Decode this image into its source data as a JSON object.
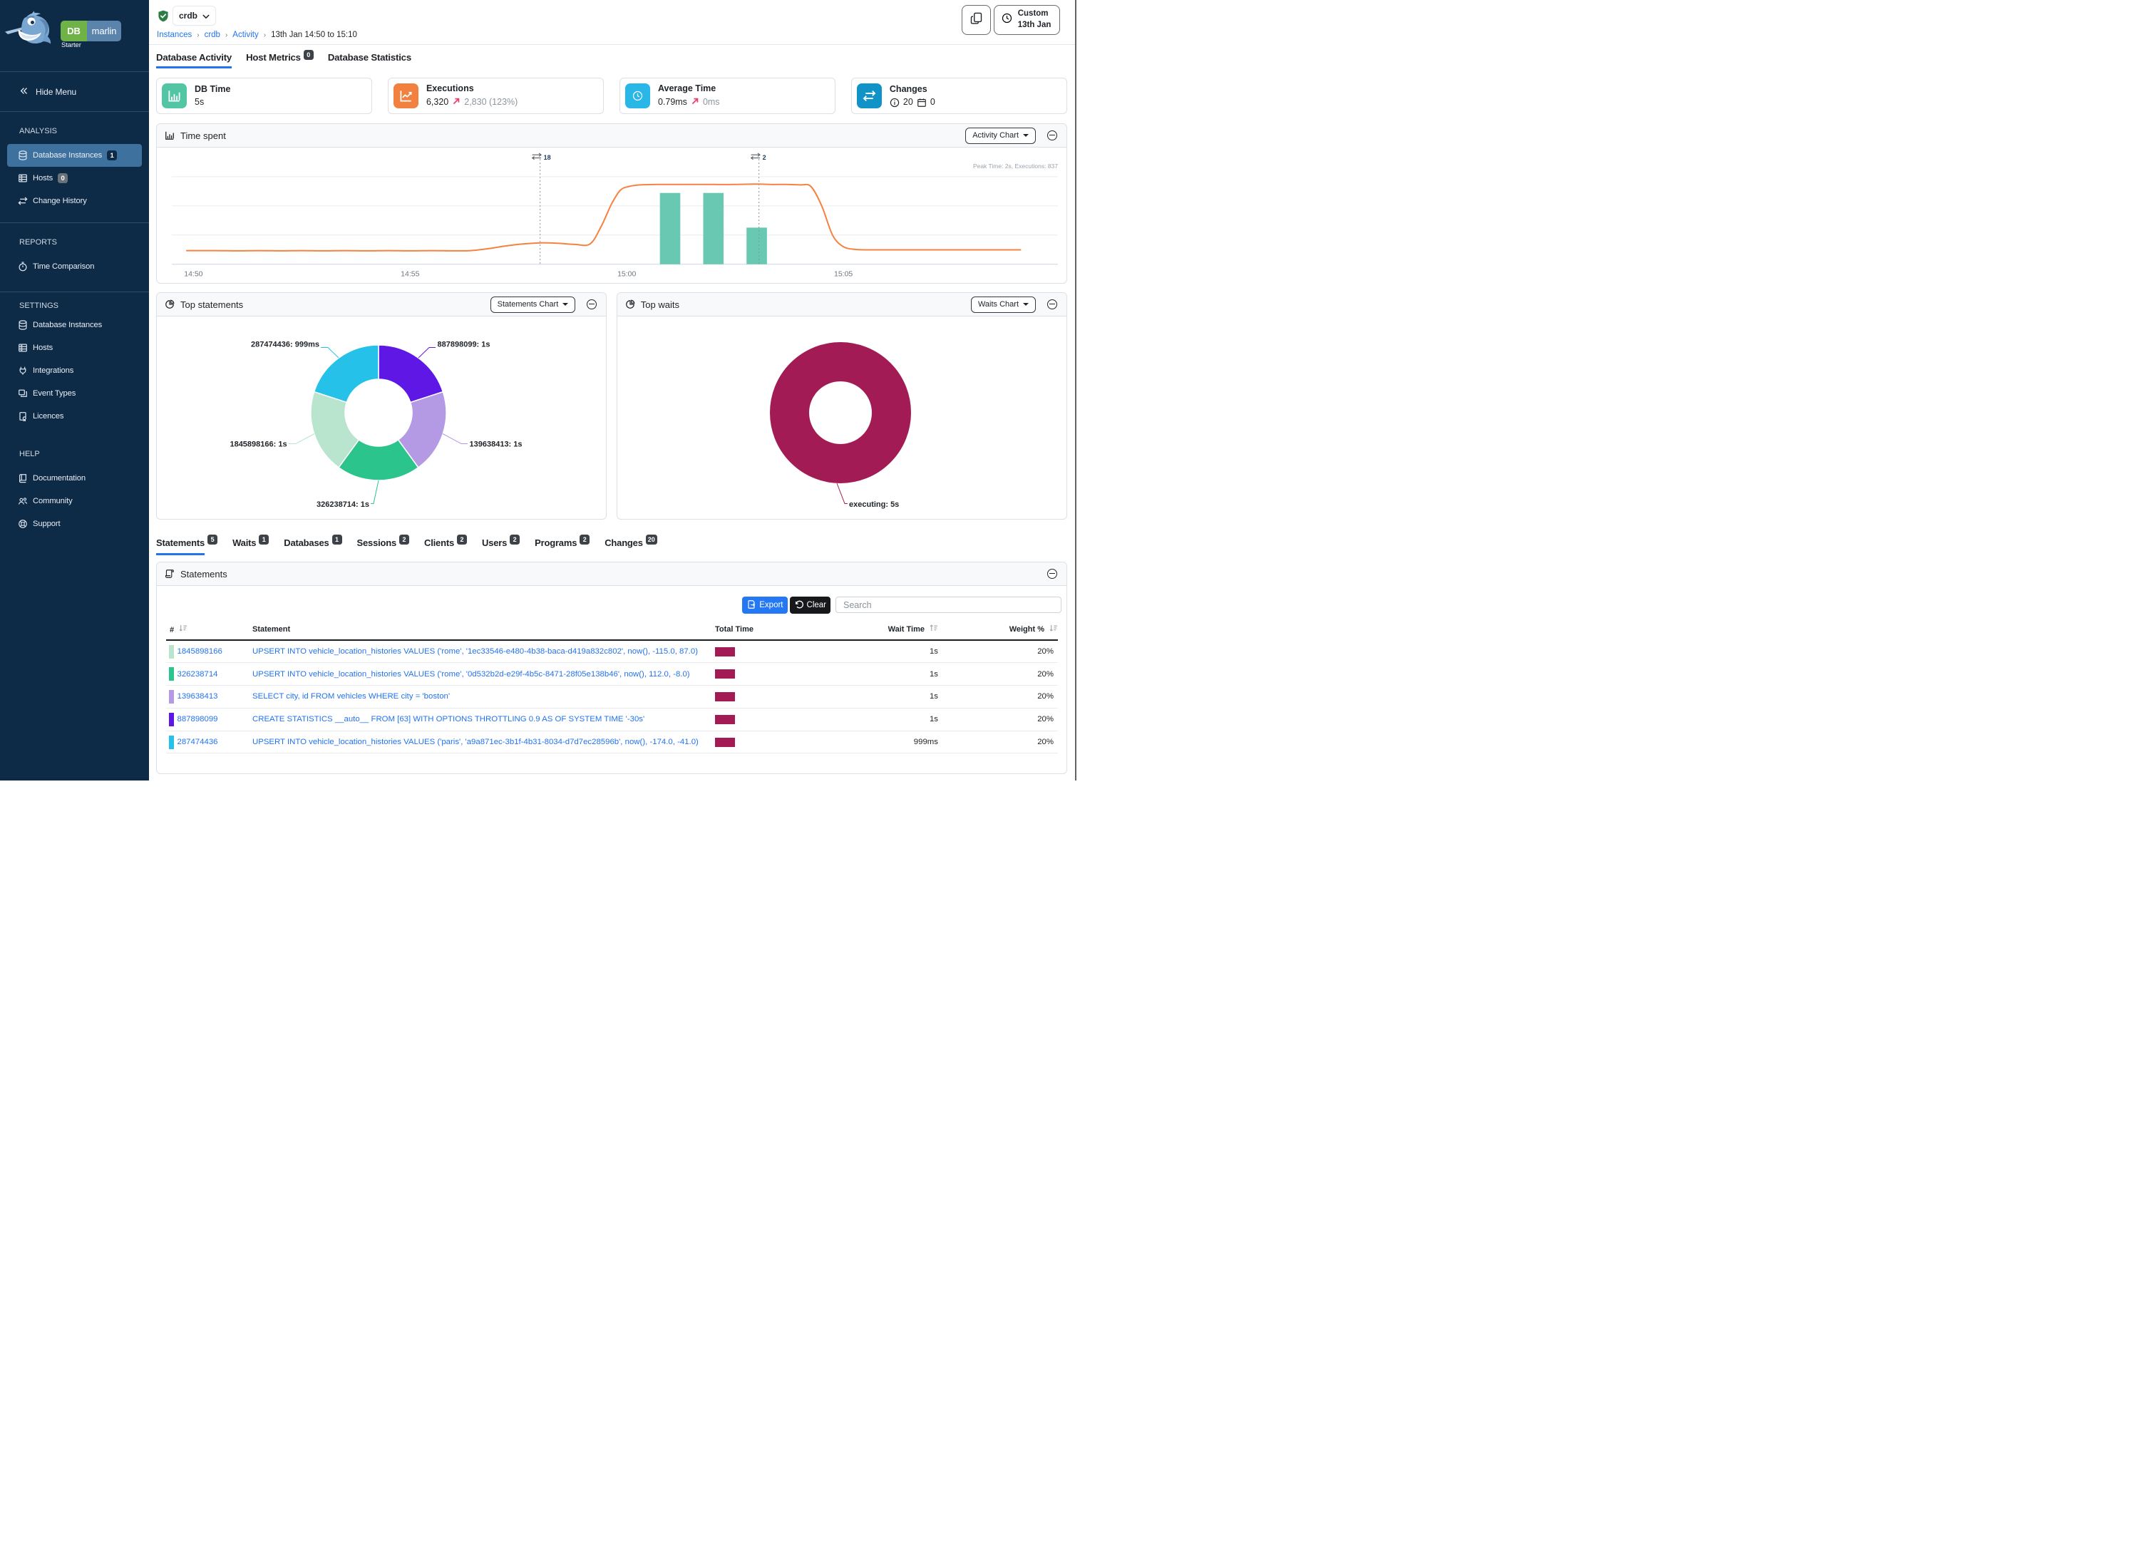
{
  "brand": {
    "db": "DB",
    "marlin": "marlin",
    "tier": "Starter",
    "green": "#6fb247",
    "blue": "#5b84ad"
  },
  "colors": {
    "sidebar_navy": "#0d2a46",
    "sidebar_active_item": "#3f719f",
    "accent_blue": "#2373f0",
    "link_blue": "#2373f0",
    "line_orange": "#f58240",
    "bar_teal": "#68c8b1",
    "wait_maroon": "#a31b55",
    "export_blue": "#2478f4",
    "clear_black": "#16181b",
    "badge_dark": "#3c4248",
    "trend_arrow_red": "#e8436e"
  },
  "sidebar": {
    "hide_menu": "Hide Menu",
    "sections": [
      {
        "title": "ANALYSIS",
        "items": [
          {
            "label": "Database Instances",
            "icon": "database-icon",
            "badge": "1",
            "badge_style": "navy",
            "active": true
          },
          {
            "label": "Hosts",
            "icon": "server-icon",
            "badge": "0",
            "badge_style": "gray",
            "active": false
          },
          {
            "label": "Change History",
            "icon": "swap-icon",
            "active": false
          }
        ]
      },
      {
        "title": "REPORTS",
        "items": [
          {
            "label": "Time Comparison",
            "icon": "stopwatch-icon",
            "active": false
          }
        ]
      },
      {
        "title": "SETTINGS",
        "items": [
          {
            "label": "Database Instances",
            "icon": "database-icon",
            "active": false
          },
          {
            "label": "Hosts",
            "icon": "server-icon",
            "active": false
          },
          {
            "label": "Integrations",
            "icon": "plug-icon",
            "active": false
          },
          {
            "label": "Event Types",
            "icon": "windows-icon",
            "active": false
          },
          {
            "label": "Licences",
            "icon": "certificate-icon",
            "active": false
          }
        ]
      },
      {
        "title": "HELP",
        "items": [
          {
            "label": "Documentation",
            "icon": "book-icon",
            "active": false
          },
          {
            "label": "Community",
            "icon": "people-icon",
            "active": false
          },
          {
            "label": "Support",
            "icon": "support-icon",
            "active": false
          }
        ]
      }
    ]
  },
  "header": {
    "instance": "crdb",
    "status": "healthy",
    "breadcrumb": [
      "Instances",
      "crdb",
      "Activity",
      "13th Jan 14:50 to 15:10"
    ],
    "time_button": {
      "line1": "Custom",
      "line2": "13th Jan"
    }
  },
  "page_tabs": [
    {
      "label": "Database Activity",
      "active": true
    },
    {
      "label": "Host Metrics",
      "badge": "0",
      "active": false
    },
    {
      "label": "Database Statistics",
      "active": false
    }
  ],
  "cards": [
    {
      "title": "DB Time",
      "value": "5s",
      "icon": "bar-chart-icon",
      "color": "#52c6a4"
    },
    {
      "title": "Executions",
      "value": "6,320",
      "delta": "2,830 (123%)",
      "trend": "up",
      "icon": "line-chart-icon",
      "color": "#f2803f"
    },
    {
      "title": "Average Time",
      "value": "0.79ms",
      "delta": "0ms",
      "trend": "up",
      "icon": "clock-icon",
      "color": "#29b7e8"
    },
    {
      "title": "Changes",
      "info_value": "20",
      "calendar_value": "0",
      "icon": "swap-icon",
      "color": "#1193c7"
    }
  ],
  "time_spent_panel": {
    "title": "Time spent",
    "icon": "bar-chart-icon",
    "button_label": "Activity Chart",
    "peak_note": "Peak Time: 2s, Executions: 837"
  },
  "top_statements_panel": {
    "title": "Top statements",
    "icon": "pie-icon",
    "button_label": "Statements Chart"
  },
  "top_waits_panel": {
    "title": "Top waits",
    "icon": "pie-icon",
    "button_label": "Waits Chart"
  },
  "chart_data": [
    {
      "name": "time_spent",
      "type": "line",
      "title": "Time spent",
      "x_axis": {
        "ticks": [
          "14:50",
          "14:55",
          "15:00",
          "15:05"
        ],
        "tick_minutes": [
          0,
          5,
          10,
          15
        ],
        "range_minutes": [
          -0.5,
          19.95
        ]
      },
      "y_axis": {
        "unit": "seconds",
        "min": 0,
        "max": 3,
        "gridlines": true
      },
      "series": [
        {
          "name": "DB Time",
          "type": "line",
          "color": "#f58240",
          "points_min_sec": [
            [
              -0.17,
              0.35
            ],
            [
              0.5,
              0.35
            ],
            [
              1,
              0.345
            ],
            [
              1.5,
              0.35
            ],
            [
              2,
              0.345
            ],
            [
              2.5,
              0.35
            ],
            [
              3,
              0.345
            ],
            [
              3.5,
              0.35
            ],
            [
              4,
              0.345
            ],
            [
              4.5,
              0.35
            ],
            [
              5,
              0.345
            ],
            [
              5.5,
              0.35
            ],
            [
              6,
              0.345
            ],
            [
              6.4,
              0.35
            ],
            [
              6.8,
              0.4
            ],
            [
              7.2,
              0.47
            ],
            [
              7.6,
              0.52
            ],
            [
              8,
              0.55
            ],
            [
              8.4,
              0.54
            ],
            [
              8.8,
              0.51
            ],
            [
              9.15,
              0.52
            ],
            [
              9.4,
              0.95
            ],
            [
              9.65,
              1.55
            ],
            [
              9.85,
              1.9
            ],
            [
              10.05,
              2.0
            ],
            [
              10.3,
              2.04
            ],
            [
              10.7,
              2.05
            ],
            [
              11,
              2.05
            ],
            [
              11.5,
              2.05
            ],
            [
              12,
              2.05
            ],
            [
              12.5,
              2.05
            ],
            [
              13,
              2.06
            ],
            [
              13.3,
              2.05
            ],
            [
              13.7,
              2.05
            ],
            [
              14,
              2.04
            ],
            [
              14.25,
              2.0
            ],
            [
              14.5,
              1.5
            ],
            [
              14.75,
              0.75
            ],
            [
              15,
              0.45
            ],
            [
              15.3,
              0.38
            ],
            [
              15.7,
              0.37
            ],
            [
              16.5,
              0.37
            ],
            [
              17.5,
              0.37
            ],
            [
              18.5,
              0.37
            ],
            [
              19.1,
              0.37
            ]
          ]
        },
        {
          "name": "Executions",
          "type": "bar",
          "color": "#68c8b1",
          "peak": 837,
          "bars": [
            {
              "minute": 11,
              "executions": 837
            },
            {
              "minute": 12,
              "executions": 837
            },
            {
              "minute": 13,
              "executions": 430
            }
          ]
        }
      ],
      "change_markers": [
        {
          "minute": 8.0,
          "label": "18"
        },
        {
          "minute": 13.05,
          "label": "2"
        }
      ]
    },
    {
      "name": "top_statements",
      "type": "pie",
      "title": "Top statements",
      "slices": [
        {
          "id": "887898099",
          "time": "1s",
          "value": 1,
          "color": "#5f17e6"
        },
        {
          "id": "139638413",
          "time": "1s",
          "value": 1,
          "color": "#b49ae4"
        },
        {
          "id": "326238714",
          "time": "1s",
          "value": 1,
          "color": "#2bc48c"
        },
        {
          "id": "1845898166",
          "time": "1s",
          "value": 1,
          "color": "#b9e4cd"
        },
        {
          "id": "287474436",
          "time": "999ms",
          "value": 0.999,
          "color": "#26c1e8"
        }
      ]
    },
    {
      "name": "top_waits",
      "type": "pie",
      "title": "Top waits",
      "slices": [
        {
          "id": "executing",
          "time": "5s",
          "value": 5,
          "color": "#a31b55"
        }
      ]
    }
  ],
  "detail_tabs": [
    {
      "label": "Statements",
      "badge": "5",
      "active": true
    },
    {
      "label": "Waits",
      "badge": "1",
      "active": false
    },
    {
      "label": "Databases",
      "badge": "1",
      "active": false
    },
    {
      "label": "Sessions",
      "badge": "2",
      "active": false
    },
    {
      "label": "Clients",
      "badge": "2",
      "active": false
    },
    {
      "label": "Users",
      "badge": "2",
      "active": false
    },
    {
      "label": "Programs",
      "badge": "2",
      "active": false
    },
    {
      "label": "Changes",
      "badge": "20",
      "active": false
    }
  ],
  "statements_panel": {
    "title": "Statements",
    "icon": "scroll-icon",
    "toolbar": {
      "export_label": "Export",
      "clear_label": "Clear",
      "search_placeholder": "Search"
    },
    "table": {
      "columns": [
        "#",
        "Statement",
        "Total Time",
        "Wait Time",
        "Weight %"
      ],
      "sortable": [
        "#",
        "Wait Time",
        "Weight %"
      ],
      "rows": [
        {
          "id": "1845898166",
          "color": "#b9e4cd",
          "statement": "UPSERT INTO vehicle_location_histories VALUES ('rome', '1ec33546-e480-4b38-baca-d419a832c802', now(), -115.0, 87.0)",
          "total_time_sec": 1,
          "wait_time": "1s",
          "weight": "20%"
        },
        {
          "id": "326238714",
          "color": "#2bc48c",
          "statement": "UPSERT INTO vehicle_location_histories VALUES ('rome', '0d532b2d-e29f-4b5c-8471-28f05e138b46', now(), 112.0, -8.0)",
          "total_time_sec": 1,
          "wait_time": "1s",
          "weight": "20%"
        },
        {
          "id": "139638413",
          "color": "#b49ae4",
          "statement": "SELECT city, id FROM vehicles WHERE city = 'boston'",
          "total_time_sec": 1,
          "wait_time": "1s",
          "weight": "20%"
        },
        {
          "id": "887898099",
          "color": "#5f17e6",
          "statement": "CREATE STATISTICS __auto__ FROM [63] WITH OPTIONS THROTTLING 0.9 AS OF SYSTEM TIME '-30s'",
          "total_time_sec": 1,
          "wait_time": "1s",
          "weight": "20%"
        },
        {
          "id": "287474436",
          "color": "#26c1e8",
          "statement": "UPSERT INTO vehicle_location_histories VALUES ('paris', 'a9a871ec-3b1f-4b31-8034-d7d7ec28596b', now(), -174.0, -41.0)",
          "total_time_sec": 0.999,
          "wait_time": "999ms",
          "weight": "20%"
        }
      ]
    }
  }
}
